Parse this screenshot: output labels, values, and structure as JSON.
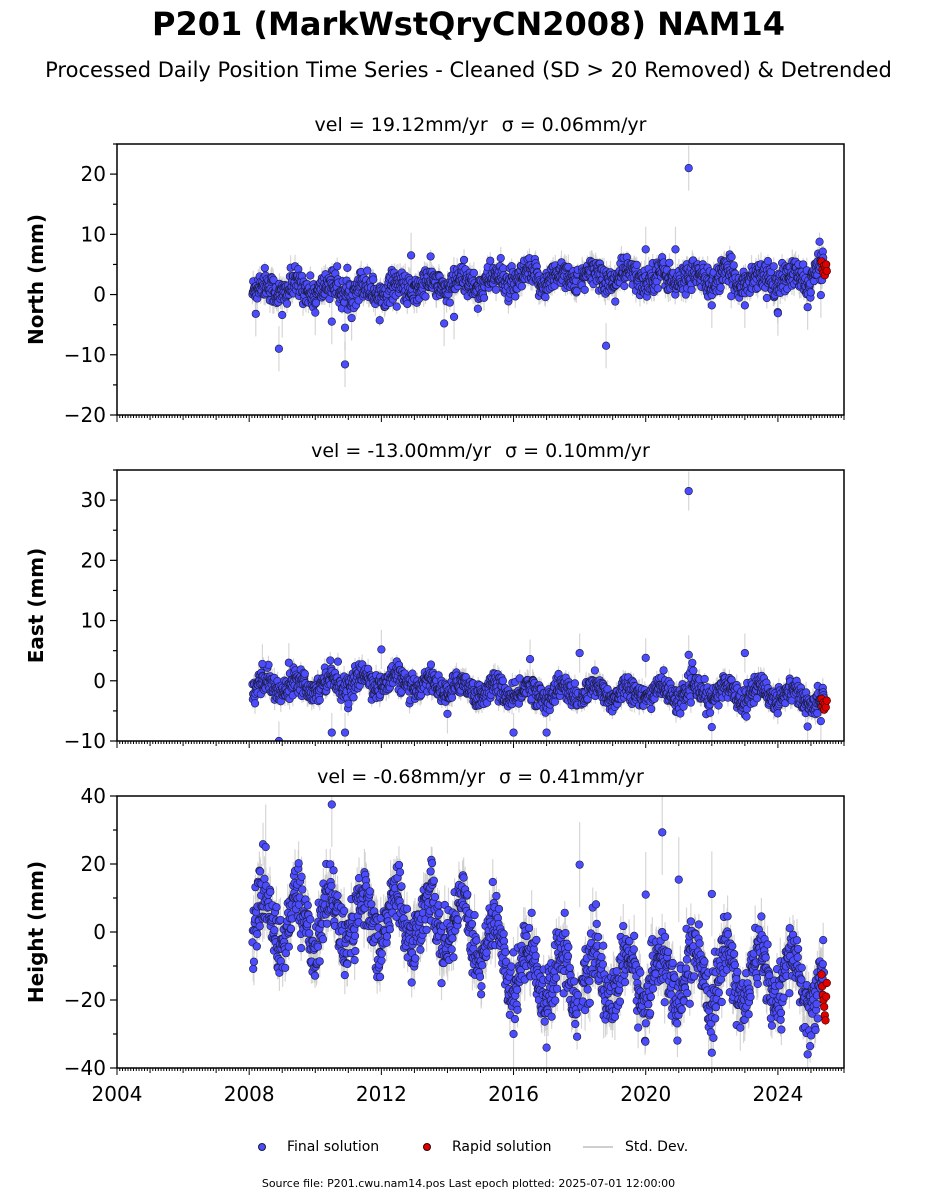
{
  "title": "P201 (MarkWstQryCN2008) NAM14",
  "subtitle": "Processed Daily Position Time Series - Cleaned (SD > 20 Removed) & Detrended",
  "legend": {
    "final": "Final solution",
    "rapid": "Rapid solution",
    "stddev": "Std. Dev."
  },
  "footer": "Source file: P201.cwu.nam14.pos  Last epoch plotted: 2025-07-01 12:00:00",
  "colors": {
    "final": "#4b4bff",
    "rapid": "#e00000",
    "stddev": "#c8c8c8",
    "marker_edge": "#1a1a33"
  },
  "chart_data": [
    {
      "type": "scatter",
      "panel": "north",
      "title_vel": "vel = 19.12mm/yr",
      "title_sigma": "σ = 0.06mm/yr",
      "ylabel": "North (mm)",
      "xlim": [
        2004,
        2026
      ],
      "ylim": [
        -20,
        25
      ],
      "xticks": [
        2004,
        2008,
        2012,
        2016,
        2020,
        2024
      ],
      "yticks": [
        -20,
        -10,
        0,
        10,
        20
      ],
      "show_x_tick_labels": false,
      "data_start": 2008.1,
      "data_end": 2025.4,
      "gap": [
        2017.95,
        2018.05
      ],
      "trend": [
        [
          2008.1,
          1.0
        ],
        [
          2012.0,
          0.8
        ],
        [
          2016.0,
          2.5
        ],
        [
          2018.0,
          3.0
        ],
        [
          2024.9,
          2.5
        ],
        [
          2025.2,
          4.5
        ]
      ],
      "seasonal_amplitude": 1.0,
      "noise": 1.2,
      "sd_typical": 1.5,
      "outliers": [
        [
          2008.2,
          -3.2
        ],
        [
          2008.9,
          -9.0
        ],
        [
          2009.0,
          -3.4
        ],
        [
          2010.0,
          -3.0
        ],
        [
          2010.5,
          -4.5
        ],
        [
          2010.9,
          -5.5
        ],
        [
          2010.9,
          -11.6
        ],
        [
          2011.1,
          -3.9
        ],
        [
          2012.9,
          6.5
        ],
        [
          2013.9,
          -4.8
        ],
        [
          2014.2,
          -3.7
        ],
        [
          2018.8,
          -8.5
        ],
        [
          2020.0,
          7.5
        ],
        [
          2020.9,
          7.5
        ],
        [
          2021.3,
          21.0
        ],
        [
          2022.0,
          -1.8
        ],
        [
          2023.0,
          -1.8
        ],
        [
          2024.0,
          -3.1
        ],
        [
          2024.9,
          -2.1
        ],
        [
          2025.3,
          -0.1
        ]
      ],
      "rapid": {
        "x": [
          2025.32,
          2025.35,
          2025.38,
          2025.4,
          2025.42,
          2025.44,
          2025.46,
          2025.48
        ],
        "y": [
          5.5,
          4.2,
          3.6,
          4.8,
          3.2,
          4.5,
          5.0,
          3.9
        ]
      }
    },
    {
      "type": "scatter",
      "panel": "east",
      "title_vel": "vel = -13.00mm/yr",
      "title_sigma": "σ = 0.10mm/yr",
      "ylabel": "East (mm)",
      "xlim": [
        2004,
        2026
      ],
      "ylim": [
        -10,
        35
      ],
      "xticks": [
        2004,
        2008,
        2012,
        2016,
        2020,
        2024
      ],
      "yticks": [
        -10,
        0,
        10,
        20,
        30
      ],
      "show_x_tick_labels": false,
      "data_start": 2008.1,
      "data_end": 2025.4,
      "gap": [
        2017.95,
        2018.05
      ],
      "trend": [
        [
          2008.1,
          -1.0
        ],
        [
          2012.0,
          0.0
        ],
        [
          2016.0,
          -2.0
        ],
        [
          2020.0,
          -2.0
        ],
        [
          2024.0,
          -2.0
        ],
        [
          2025.4,
          -3.5
        ]
      ],
      "seasonal_amplitude": 1.2,
      "noise": 1.0,
      "sd_typical": 1.3,
      "outliers": [
        [
          2008.4,
          2.8
        ],
        [
          2008.9,
          -10.0
        ],
        [
          2009.2,
          3.0
        ],
        [
          2010.5,
          -8.6
        ],
        [
          2010.9,
          -8.6
        ],
        [
          2012.0,
          5.2
        ],
        [
          2014.0,
          -5.5
        ],
        [
          2016.0,
          -8.6
        ],
        [
          2016.5,
          3.6
        ],
        [
          2017.0,
          -8.6
        ],
        [
          2018.0,
          4.6
        ],
        [
          2020.0,
          3.8
        ],
        [
          2021.3,
          31.5
        ],
        [
          2021.3,
          4.3
        ],
        [
          2022.0,
          -7.7
        ],
        [
          2023.0,
          4.6
        ],
        [
          2024.9,
          -7.6
        ],
        [
          2025.3,
          -6.7
        ]
      ],
      "rapid": {
        "x": [
          2025.32,
          2025.35,
          2025.38,
          2025.4,
          2025.42,
          2025.45,
          2025.48
        ],
        "y": [
          -3.0,
          -4.2,
          -3.6,
          -4.8,
          -3.9,
          -4.4,
          -3.3
        ]
      }
    },
    {
      "type": "scatter",
      "panel": "height",
      "title_vel": "vel = -0.68mm/yr",
      "title_sigma": "σ = 0.41mm/yr",
      "ylabel": "Height (mm)",
      "xlim": [
        2004,
        2026
      ],
      "ylim": [
        -40,
        40
      ],
      "xticks": [
        2004,
        2008,
        2012,
        2016,
        2020,
        2024
      ],
      "yticks": [
        -40,
        -20,
        0,
        20,
        40
      ],
      "show_x_tick_labels": true,
      "data_start": 2008.1,
      "data_end": 2025.4,
      "gap": [
        2017.95,
        2018.05
      ],
      "trend": [
        [
          2008.1,
          3.0
        ],
        [
          2012.0,
          4.0
        ],
        [
          2014.5,
          3.0
        ],
        [
          2016.0,
          -10.0
        ],
        [
          2018.0,
          -14.0
        ],
        [
          2024.0,
          -13.0
        ],
        [
          2025.4,
          -18.0
        ]
      ],
      "seasonal_amplitude": 8.0,
      "noise": 4.5,
      "sd_typical": 5.0,
      "outliers": [
        [
          2008.5,
          25.0
        ],
        [
          2010.5,
          37.5
        ],
        [
          2018.0,
          19.8
        ],
        [
          2020.5,
          29.3
        ],
        [
          2020.0,
          11.0
        ],
        [
          2021.0,
          15.4
        ],
        [
          2022.0,
          11.2
        ],
        [
          2022.0,
          -35.5
        ],
        [
          2024.9,
          -36.0
        ],
        [
          2017.0,
          -34.0
        ],
        [
          2016.0,
          -30.0
        ]
      ],
      "rapid": {
        "x": [
          2025.32,
          2025.34,
          2025.36,
          2025.38,
          2025.4,
          2025.42,
          2025.44,
          2025.46,
          2025.48
        ],
        "y": [
          -12.5,
          -16.0,
          -18.5,
          -20.0,
          -22.0,
          -24.5,
          -26.0,
          -19.0,
          -15.0
        ]
      }
    }
  ]
}
